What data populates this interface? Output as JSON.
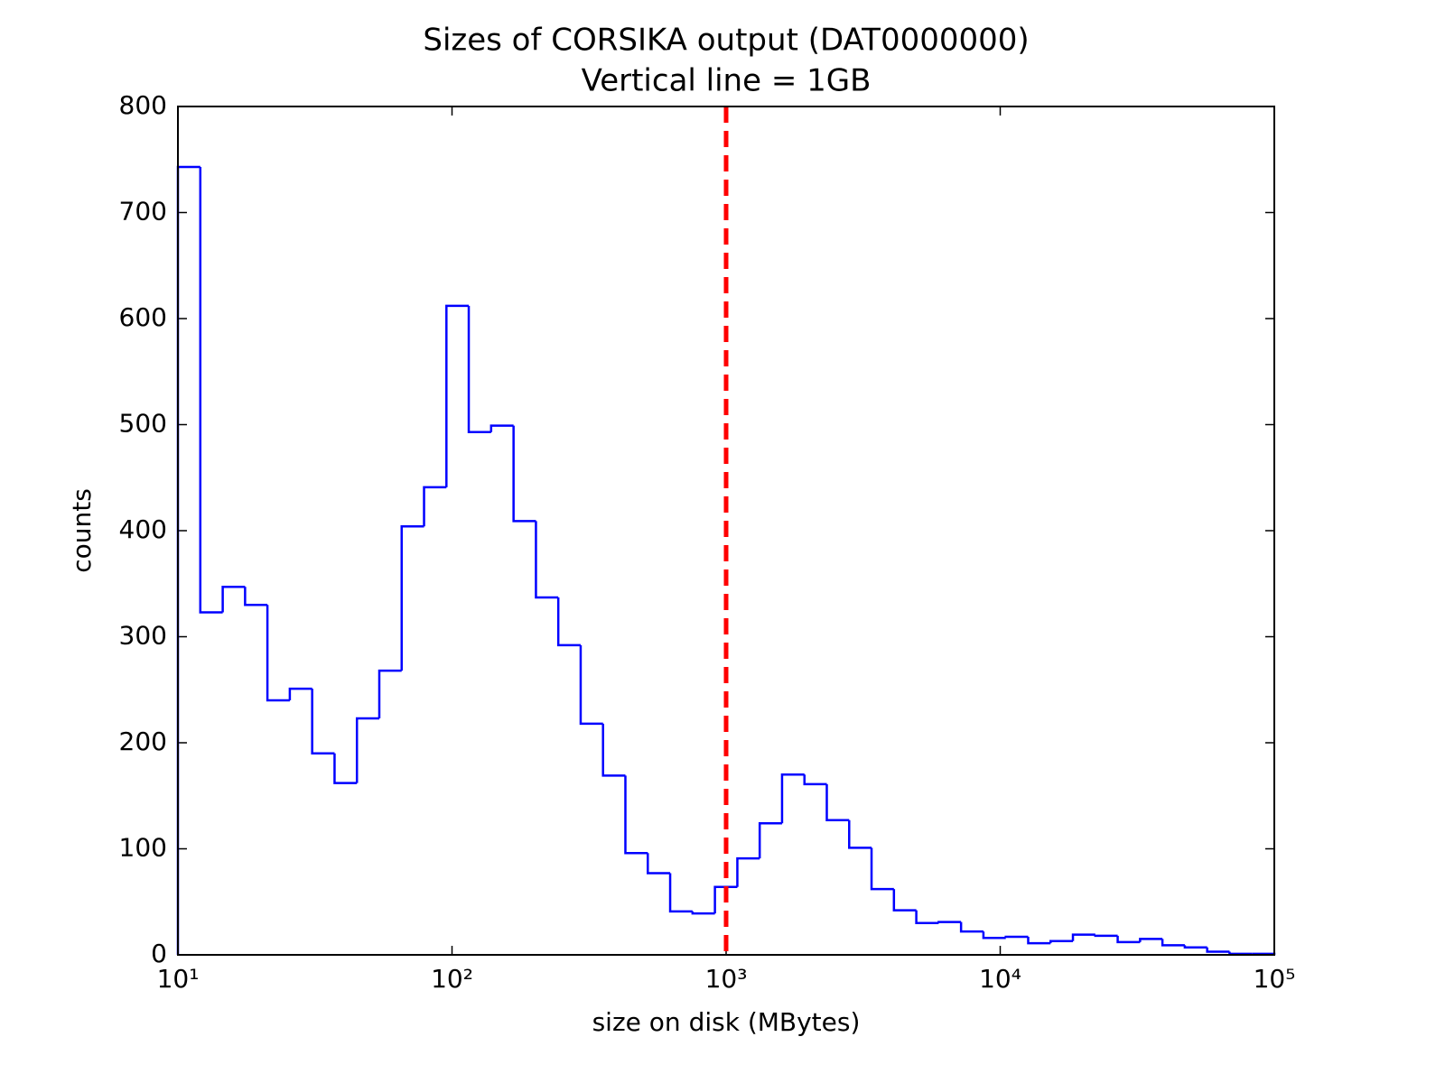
{
  "chart_data": {
    "type": "histogram",
    "title": "Sizes of CORSIKA output (DAT0000000)",
    "subtitle": "Vertical line = 1GB",
    "x_label": "size on disk (MBytes)",
    "y_label": "counts",
    "xscale": "log",
    "bins": [
      10,
      12.07,
      14.57,
      17.58,
      21.21,
      25.6,
      30.89,
      37.28,
      44.99,
      54.29,
      65.51,
      79.06,
      95.41,
      115.1,
      138.9,
      167.7,
      202.4,
      244.2,
      294.7,
      355.6,
      429.1,
      517.9,
      625.0,
      754.3,
      910.3,
      1099,
      1326,
      1600,
      1931,
      2330,
      2812,
      3393,
      4095,
      4942,
      5964,
      7197,
      8685,
      10481,
      12649,
      15264,
      18421,
      22230,
      26827,
      32375,
      39069,
      47149,
      56899,
      68665,
      82864,
      100000
    ],
    "values": [
      743,
      323,
      347,
      330,
      240,
      251,
      190,
      162,
      223,
      268,
      404,
      441,
      612,
      493,
      499,
      409,
      337,
      292,
      218,
      169,
      96,
      77,
      41,
      39,
      64,
      91,
      124,
      170,
      161,
      127,
      101,
      62,
      42,
      30,
      31,
      22,
      16,
      17,
      11,
      13,
      19,
      18,
      12,
      15,
      9,
      7,
      3,
      1,
      1
    ],
    "color": "#0000ff",
    "vlines": [
      {
        "x": 1000,
        "color": "#ff0000"
      }
    ],
    "xlim": [
      10,
      100000
    ],
    "xticks": [
      {
        "value": 10,
        "label": "10¹"
      },
      {
        "value": 100,
        "label": "10²"
      },
      {
        "value": 1000,
        "label": "10³"
      },
      {
        "value": 10000,
        "label": "10⁴"
      },
      {
        "value": 100000,
        "label": "10⁵"
      }
    ],
    "ylim": [
      0,
      800
    ],
    "yticks": [
      0,
      100,
      200,
      300,
      400,
      500,
      600,
      700,
      800
    ],
    "grid": false
  }
}
